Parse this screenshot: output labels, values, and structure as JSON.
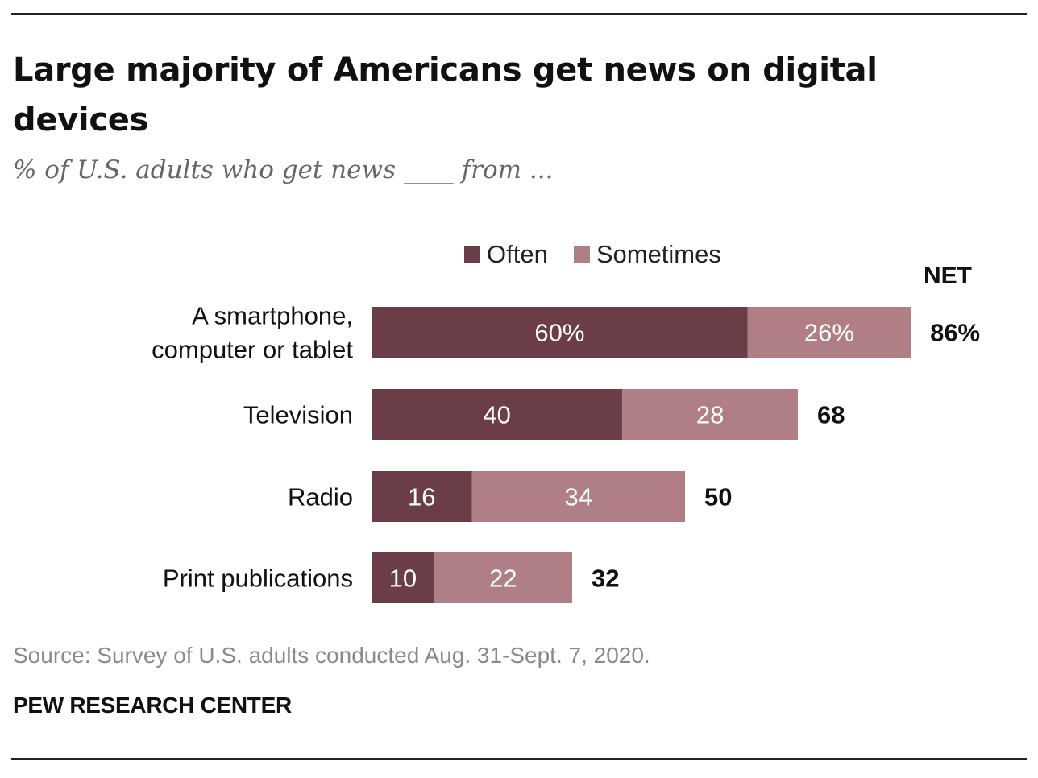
{
  "title": "Large majority of Americans get news on digital devices",
  "subtitle": "% of U.S. adults who get news ____ from ...",
  "source": "Source: Survey of U.S. adults conducted Aug. 31-Sept. 7, 2020.",
  "brand": "PEW RESEARCH CENTER",
  "net_header": "NET",
  "colors": {
    "often": "#6b3d47",
    "sometimes": "#b07f85",
    "bar_text": "#ffffff"
  },
  "chart_data": {
    "type": "bar",
    "orientation": "horizontal",
    "stacked": true,
    "categories": [
      "A smartphone,|computer or tablet",
      "Television",
      "Radio",
      "Print publications"
    ],
    "series": [
      {
        "name": "Often",
        "values": [
          60,
          40,
          16,
          10
        ],
        "labels": [
          "60%",
          "40",
          "16",
          "10"
        ]
      },
      {
        "name": "Sometimes",
        "values": [
          26,
          28,
          34,
          22
        ],
        "labels": [
          "26%",
          "28",
          "34",
          "22"
        ]
      }
    ],
    "net": {
      "values": [
        86,
        68,
        50,
        32
      ],
      "labels": [
        "86%",
        "68",
        "50",
        "32"
      ]
    },
    "xlim": [
      0,
      100
    ],
    "grid": false,
    "legend": "top"
  }
}
